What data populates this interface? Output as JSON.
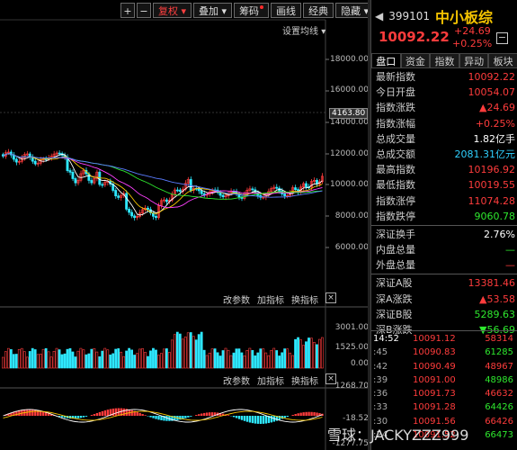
{
  "toolbar": {
    "plus": "+",
    "minus": "−",
    "fuquan": "复权",
    "diejia": "叠加",
    "chouma": "筹码",
    "huaxian": "画线",
    "jingdian": "经典",
    "yincang": "隐藏"
  },
  "main_chart": {
    "setting_label": "设置均线",
    "y_labels": [
      "18000.00",
      "16000.00",
      "14000.00",
      "12000.00",
      "10000.00",
      "8000.00",
      "6000.00"
    ],
    "cursor_value": "4163.80",
    "colors": {
      "up": "#ff3c3c",
      "down": "#2ee8ff",
      "ma5": "#ffffff",
      "ma10": "#f5c400",
      "ma20": "#ff40ff",
      "ma60": "#2ee82e"
    }
  },
  "volume_panel": {
    "buttons": {
      "params": "改参数",
      "indicator": "加指标",
      "switch": "换指标",
      "close": "×"
    },
    "y_labels": [
      "3001.00",
      "1525.00",
      "0.00"
    ]
  },
  "macd_panel": {
    "buttons": {
      "params": "改参数",
      "indicator": "加指标",
      "switch": "换指标",
      "close": "×"
    },
    "y_labels": [
      "1268.70",
      "-18.52",
      "-1277.75"
    ]
  },
  "quote": {
    "code": "399101",
    "name": "中小板综",
    "price": "10092.22",
    "change": "+24.69",
    "change_pct": "+0.25%",
    "tabs": [
      "盘口",
      "资金",
      "指数",
      "异动",
      "板块"
    ],
    "rows": [
      {
        "k": "最新指数",
        "v": "10092.22",
        "c": "red"
      },
      {
        "k": "今日开盘",
        "v": "10054.07",
        "c": "red"
      },
      {
        "k": "指数涨跌",
        "v": "▲24.69",
        "c": "red"
      },
      {
        "k": "指数涨幅",
        "v": "+0.25%",
        "c": "red"
      },
      {
        "k": "总成交量",
        "v": "1.82亿手",
        "c": "white"
      },
      {
        "k": "总成交额",
        "v": "2081.31亿元",
        "c": "cyan"
      },
      {
        "k": "最高指数",
        "v": "10196.92",
        "c": "red"
      },
      {
        "k": "最低指数",
        "v": "10019.55",
        "c": "red"
      },
      {
        "k": "指数涨停",
        "v": "11074.28",
        "c": "red"
      },
      {
        "k": "指数跌停",
        "v": "9060.78",
        "c": "green"
      }
    ],
    "rows2": [
      {
        "k": "深证换手",
        "v": "2.76%",
        "c": "white"
      },
      {
        "k": "内盘总量",
        "v": "—",
        "c": "green"
      },
      {
        "k": "外盘总量",
        "v": "—",
        "c": "red"
      }
    ],
    "rows3": [
      {
        "k": "深证A股",
        "v": "13381.46",
        "c": "red"
      },
      {
        "k": "深A涨跌",
        "v": "▲53.58",
        "c": "red"
      },
      {
        "k": "深证B股",
        "v": "5289.63",
        "c": "green"
      },
      {
        "k": "深B涨跌",
        "v": "▼56.69",
        "c": "green"
      }
    ],
    "ticks": [
      {
        "t": "14:52",
        "p": "10091.12",
        "v": "58314"
      },
      {
        "t": ":45",
        "p": "10090.83",
        "v": "61285"
      },
      {
        "t": ":42",
        "p": "10090.49",
        "v": "48967"
      },
      {
        "t": ":39",
        "p": "10091.00",
        "v": "48986"
      },
      {
        "t": ":36",
        "p": "10091.73",
        "v": "46632"
      },
      {
        "t": ":33",
        "p": "10091.28",
        "v": "64426"
      },
      {
        "t": ":30",
        "p": "10091.56",
        "v": "66426"
      },
      {
        "t": ":24",
        "p": "10091.52",
        "v": "66473"
      }
    ]
  },
  "watermark": "雪球：JACKYZZZ999"
}
